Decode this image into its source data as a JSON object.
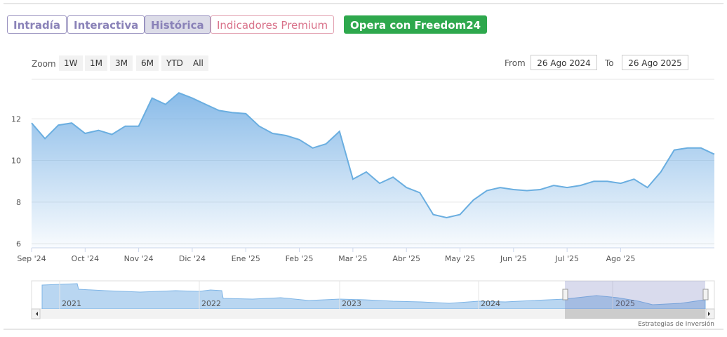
{
  "buttons": [
    "Intradía",
    "Interactiva",
    "Histórica",
    "Indicadores Premium",
    "Opera con Freedom24"
  ],
  "range_selector": {
    "zoom_label": "Zoom",
    "zoom_options": [
      "1W",
      "1M",
      "3M",
      "6M",
      "YTD",
      "All"
    ],
    "from_label": "From",
    "from_value": "26 Ago 2024",
    "to_label": "To",
    "to_value": "26 Ago 2025"
  },
  "chart_data": {
    "type": "line",
    "categories": [
      "Sep '24",
      null,
      null,
      null,
      "Oct '24",
      null,
      null,
      null,
      "Nov '24",
      null,
      null,
      null,
      "Dic '24",
      null,
      null,
      null,
      "Ene '25",
      null,
      null,
      null,
      "Feb '25",
      null,
      null,
      null,
      "Mar '25",
      null,
      null,
      null,
      "Abr '25",
      null,
      null,
      null,
      "May '25",
      null,
      null,
      null,
      "Jun '25",
      null,
      null,
      null,
      "Jul '25",
      null,
      null,
      null,
      "Ago '25",
      null,
      null,
      null,
      null,
      null,
      null,
      null
    ],
    "series": [
      {
        "color": "#6aaee0",
        "values": [
          11.8,
          11.05,
          11.7,
          11.8,
          11.3,
          11.45,
          11.25,
          11.65,
          11.65,
          13.0,
          12.7,
          13.25,
          13.0,
          12.7,
          12.4,
          12.3,
          12.25,
          11.65,
          11.3,
          11.2,
          11.0,
          10.6,
          10.8,
          11.4,
          9.1,
          9.45,
          8.9,
          9.2,
          8.7,
          8.45,
          7.4,
          7.25,
          7.4,
          8.1,
          8.55,
          8.7,
          8.6,
          8.55,
          8.6,
          8.8,
          8.7,
          8.8,
          9.0,
          9.0,
          8.9,
          9.1,
          8.7,
          9.45,
          10.5,
          10.6,
          10.6,
          10.3
        ]
      }
    ],
    "ylim": [
      5.8,
      13.9
    ],
    "yticks": [
      6,
      8,
      10,
      12
    ],
    "grid": true
  },
  "navigator": {
    "years": [
      "2021",
      "2022",
      "2023",
      "2024",
      "2025"
    ]
  },
  "credit": "Estrategias de Inversión"
}
